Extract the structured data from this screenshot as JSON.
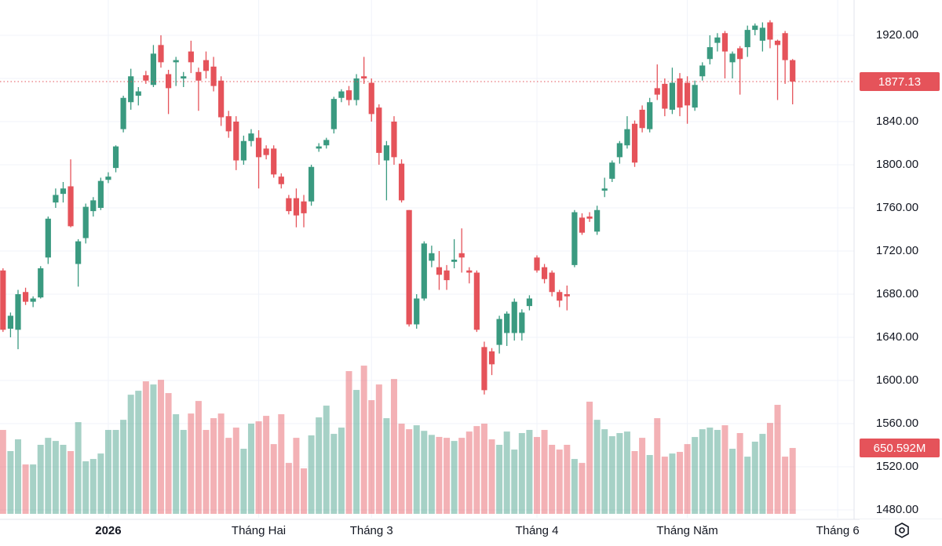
{
  "chart_data": {
    "type": "candlestick",
    "up_color": "#3a9a80",
    "down_color": "#e5535a",
    "grid": true,
    "ylim": [
      1472.73,
      1952.73
    ],
    "yticks": [
      {
        "value": 1480,
        "label": "1480.00"
      },
      {
        "value": 1520,
        "label": "1520.00"
      },
      {
        "value": 1560,
        "label": "1560.00"
      },
      {
        "value": 1600,
        "label": "1600.00"
      },
      {
        "value": 1640,
        "label": "1640.00"
      },
      {
        "value": 1680,
        "label": "1680.00"
      },
      {
        "value": 1720,
        "label": "1720.00"
      },
      {
        "value": 1760,
        "label": "1760.00"
      },
      {
        "value": 1800,
        "label": "1800.00"
      },
      {
        "value": 1840,
        "label": "1840.00"
      },
      {
        "value": 1880,
        "label": "1880.00"
      },
      {
        "value": 1920,
        "label": "1920.00"
      }
    ],
    "xlim": [
      -0.4,
      113.8
    ],
    "xticks": [
      {
        "value": 14,
        "label": "2026"
      },
      {
        "value": 34,
        "label": "Tháng Hai"
      },
      {
        "value": 49,
        "label": "Tháng 3"
      },
      {
        "value": 71,
        "label": "Tháng 4"
      },
      {
        "value": 91,
        "label": "Tháng Năm"
      },
      {
        "value": 111,
        "label": "Tháng 6"
      }
    ],
    "open": [
      1702,
      1648,
      1647,
      1682,
      1673,
      1677,
      1714,
      1765,
      1773,
      1780,
      1708,
      1732,
      1757,
      1760,
      1786,
      1797,
      1833,
      1858,
      1864,
      1883,
      1874,
      1911,
      1884,
      1895,
      1880,
      1905,
      1886,
      1897,
      1891,
      1878,
      1845,
      1840,
      1804,
      1822,
      1825,
      1815,
      1815,
      1789,
      1769,
      1769,
      1766,
      1766,
      1815,
      1818,
      1833,
      1862,
      1869,
      1860,
      1882,
      1876,
      1853,
      1804,
      1840,
      1801,
      1758,
      1652,
      1676,
      1711,
      1705,
      1702,
      1710,
      1718,
      1702,
      1700,
      1631,
      1627,
      1633,
      1644,
      1644,
      1644,
      1669,
      1714,
      1705,
      1700,
      1682,
      1680,
      1707,
      1751,
      1752,
      1738,
      1776,
      1787,
      1807,
      1818,
      1838,
      1851,
      1833,
      1871,
      1875,
      1851,
      1880,
      1876,
      1853,
      1882,
      1898,
      1913,
      1922,
      1895,
      1908,
      1909,
      1925,
      1915,
      1932,
      1915,
      1922,
      1897
    ],
    "high": [
      1704,
      1663,
      1684,
      1686,
      1678,
      1706,
      1752,
      1778,
      1784,
      1805,
      1731,
      1764,
      1770,
      1788,
      1793,
      1818,
      1864,
      1889,
      1872,
      1887,
      1911,
      1920,
      1888,
      1900,
      1886,
      1915,
      1890,
      1905,
      1900,
      1882,
      1850,
      1845,
      1827,
      1833,
      1832,
      1818,
      1818,
      1792,
      1772,
      1778,
      1772,
      1800,
      1820,
      1825,
      1863,
      1870,
      1873,
      1884,
      1900,
      1880,
      1856,
      1822,
      1845,
      1805,
      1758,
      1680,
      1729,
      1725,
      1720,
      1707,
      1731,
      1741,
      1705,
      1702,
      1636,
      1630,
      1660,
      1664,
      1676,
      1666,
      1679,
      1716,
      1708,
      1702,
      1684,
      1688,
      1758,
      1755,
      1756,
      1762,
      1788,
      1804,
      1822,
      1845,
      1841,
      1855,
      1862,
      1893,
      1880,
      1890,
      1885,
      1882,
      1878,
      1895,
      1920,
      1922,
      1924,
      1905,
      1910,
      1929,
      1931,
      1932,
      1934,
      1916,
      1924,
      1898
    ],
    "low": [
      1645,
      1640,
      1629,
      1670,
      1668,
      1676,
      1708,
      1760,
      1765,
      1742,
      1687,
      1727,
      1752,
      1758,
      1783,
      1793,
      1830,
      1851,
      1855,
      1875,
      1872,
      1890,
      1847,
      1873,
      1872,
      1885,
      1850,
      1880,
      1868,
      1836,
      1825,
      1795,
      1800,
      1817,
      1778,
      1805,
      1788,
      1778,
      1754,
      1742,
      1742,
      1762,
      1812,
      1815,
      1829,
      1858,
      1855,
      1855,
      1875,
      1840,
      1800,
      1767,
      1800,
      1765,
      1650,
      1648,
      1674,
      1705,
      1684,
      1684,
      1704,
      1700,
      1690,
      1645,
      1587,
      1605,
      1625,
      1632,
      1637,
      1637,
      1665,
      1700,
      1690,
      1678,
      1668,
      1665,
      1705,
      1735,
      1747,
      1735,
      1770,
      1784,
      1801,
      1815,
      1798,
      1830,
      1830,
      1860,
      1845,
      1847,
      1845,
      1838,
      1850,
      1878,
      1893,
      1905,
      1880,
      1880,
      1865,
      1900,
      1920,
      1905,
      1908,
      1860,
      1875,
      1856
    ],
    "close": [
      1647,
      1660,
      1680,
      1673,
      1676,
      1704,
      1750,
      1772,
      1778,
      1743,
      1729,
      1761,
      1767,
      1785,
      1789,
      1817,
      1862,
      1882,
      1868,
      1878,
      1903,
      1895,
      1871,
      1897,
      1882,
      1895,
      1878,
      1887,
      1873,
      1844,
      1831,
      1804,
      1822,
      1829,
      1807,
      1809,
      1791,
      1782,
      1757,
      1753,
      1755,
      1798,
      1817,
      1823,
      1861,
      1868,
      1860,
      1880,
      1880,
      1847,
      1811,
      1818,
      1807,
      1767,
      1652,
      1676,
      1727,
      1718,
      1698,
      1693,
      1712,
      1714,
      1700,
      1647,
      1591,
      1615,
      1657,
      1662,
      1673,
      1663,
      1676,
      1702,
      1694,
      1682,
      1674,
      1678,
      1756,
      1737,
      1750,
      1758,
      1778,
      1802,
      1820,
      1833,
      1802,
      1834,
      1858,
      1865,
      1852,
      1876,
      1853,
      1855,
      1874,
      1892,
      1909,
      1918,
      1905,
      1903,
      1898,
      1925,
      1929,
      1927,
      1916,
      1911,
      1897,
      1877.13
    ],
    "volume": [
      829,
      620,
      736,
      488,
      488,
      682,
      751,
      720,
      682,
      620,
      906,
      519,
      542,
      596,
      829,
      829,
      929,
      1177,
      1216,
      1309,
      1278,
      1324,
      1193,
      984,
      829,
      991,
      1115,
      829,
      945,
      991,
      751,
      852,
      643,
      891,
      914,
      968,
      689,
      984,
      503,
      751,
      449,
      775,
      953,
      1069,
      790,
      852,
      1410,
      1224,
      1464,
      1123,
      1278,
      945,
      1332,
      891,
      836,
      875,
      820,
      780,
      760,
      751,
      720,
      751,
      813,
      867,
      891,
      736,
      682,
      813,
      635,
      798,
      829,
      759,
      829,
      682,
      635,
      682,
      542,
      503,
      1108,
      929,
      836,
      767,
      798,
      813,
      620,
      751,
      581,
      945,
      565,
      596,
      612,
      689,
      759,
      836,
      852,
      829,
      875,
      643,
      798,
      565,
      713,
      790,
      898,
      1077,
      565,
      650.592
    ],
    "volume_lim": [
      0,
      1550
    ],
    "volume_label": "650.592M"
  }
}
